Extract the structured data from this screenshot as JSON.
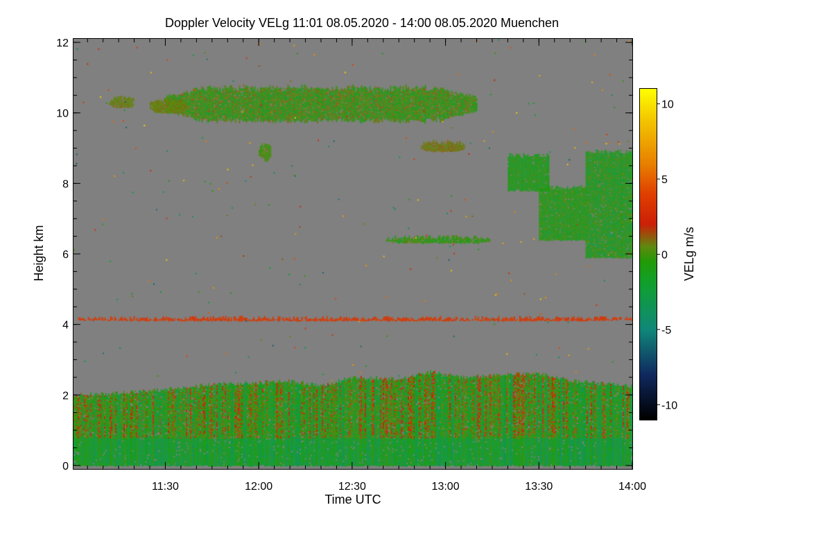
{
  "chart_data": {
    "type": "heatmap",
    "title": "Doppler Velocity VELg   11:01 08.05.2020 - 14:00 08.05.2020 Muenchen",
    "xlabel": "Time UTC",
    "ylabel": "Height km",
    "colorbar_label": "VELg m/s",
    "x_ticks": [
      {
        "label": "11:30",
        "minutes": 90
      },
      {
        "label": "12:00",
        "minutes": 120
      },
      {
        "label": "12:30",
        "minutes": 150
      },
      {
        "label": "13:00",
        "minutes": 180
      },
      {
        "label": "13:30",
        "minutes": 210
      },
      {
        "label": "14:00",
        "minutes": 240
      }
    ],
    "y_ticks": [
      {
        "label": "0",
        "value": 0
      },
      {
        "label": "2",
        "value": 2
      },
      {
        "label": "4",
        "value": 4
      },
      {
        "label": "6",
        "value": 6
      },
      {
        "label": "8",
        "value": 8
      },
      {
        "label": "10",
        "value": 10
      },
      {
        "label": "12",
        "value": 12
      }
    ],
    "colorbar_ticks": [
      {
        "label": "10",
        "value": 10
      },
      {
        "label": "5",
        "value": 5
      },
      {
        "label": "0",
        "value": 0
      },
      {
        "label": "-5",
        "value": -5
      },
      {
        "label": "-10",
        "value": -10
      }
    ],
    "x_range_minutes": [
      60.5,
      240
    ],
    "y_range_km": [
      -0.1,
      12.1
    ],
    "colorbar_range": [
      -11,
      11
    ],
    "background_color": "#808080",
    "colormap": [
      {
        "v": -11,
        "c": "#000000"
      },
      {
        "v": -8,
        "c": "#102a60"
      },
      {
        "v": -5,
        "c": "#10887a"
      },
      {
        "v": -2,
        "c": "#10a030"
      },
      {
        "v": -0.5,
        "c": "#229b08"
      },
      {
        "v": 0.5,
        "c": "#5f8a10"
      },
      {
        "v": 2,
        "c": "#cc2008"
      },
      {
        "v": 4,
        "c": "#e04000"
      },
      {
        "v": 6,
        "c": "#e88000"
      },
      {
        "v": 9,
        "c": "#f4c800"
      },
      {
        "v": 11,
        "c": "#ffff00"
      }
    ],
    "regions": [
      {
        "name": "boundary-layer",
        "t0": 60.5,
        "t1": 240,
        "h0": 0,
        "h1_profile": [
          [
            60.5,
            2.0
          ],
          [
            75,
            2.05
          ],
          [
            90,
            2.15
          ],
          [
            105,
            2.3
          ],
          [
            120,
            2.35
          ],
          [
            130,
            2.4
          ],
          [
            140,
            2.25
          ],
          [
            150,
            2.5
          ],
          [
            165,
            2.45
          ],
          [
            175,
            2.65
          ],
          [
            185,
            2.5
          ],
          [
            200,
            2.6
          ],
          [
            210,
            2.6
          ],
          [
            220,
            2.4
          ],
          [
            240,
            2.25
          ]
        ],
        "v_min": -4,
        "v_max": 3
      },
      {
        "name": "cirrus-layer",
        "t0": 90,
        "t1": 190,
        "h_center": 10.25,
        "thickness": 0.9,
        "v_min": -1.5,
        "v_max": 1.2
      },
      {
        "name": "cirrus-streak-1",
        "t0": 72,
        "t1": 80,
        "h_center": 10.3,
        "thickness": 0.3,
        "v_min": 0.3,
        "v_max": 1.0
      },
      {
        "name": "cirrus-streak-2",
        "t0": 85,
        "t1": 97,
        "h_center": 10.2,
        "thickness": 0.35,
        "v_min": 0.3,
        "v_max": 1.0
      },
      {
        "name": "mid-cloud",
        "t0": 225,
        "t1": 240,
        "h0": 5.9,
        "h1": 8.9,
        "v_min": -2.5,
        "v_max": 0.5
      },
      {
        "name": "mid-cloud-edge",
        "t0": 210,
        "t1": 225,
        "h0": 6.4,
        "h1": 7.9,
        "v_min": -2.0,
        "v_max": 0.3
      },
      {
        "name": "mid-cloud-patch",
        "t0": 200,
        "t1": 213,
        "h0": 7.8,
        "h1": 8.8,
        "v_min": -2.0,
        "v_max": 0.0
      },
      {
        "name": "thin-layer-6km",
        "t0": 161,
        "t1": 194,
        "h_center": 6.4,
        "thickness": 0.15,
        "v_min": -1.5,
        "v_max": 0.8
      },
      {
        "name": "fallstreak-8.7km",
        "t0": 120,
        "t1": 124,
        "h_center": 8.9,
        "thickness": 0.5,
        "v_min": -0.5,
        "v_max": 0.8
      },
      {
        "name": "patch-9km",
        "t0": 172,
        "t1": 186,
        "h_center": 9.05,
        "thickness": 0.25,
        "v_min": 0.3,
        "v_max": 1.2
      },
      {
        "name": "artifact-line-4.15km",
        "t0": 62,
        "t1": 240,
        "h_center": 4.15,
        "thickness": 0.06,
        "v_min": 3.0,
        "v_max": 4.0
      }
    ]
  }
}
